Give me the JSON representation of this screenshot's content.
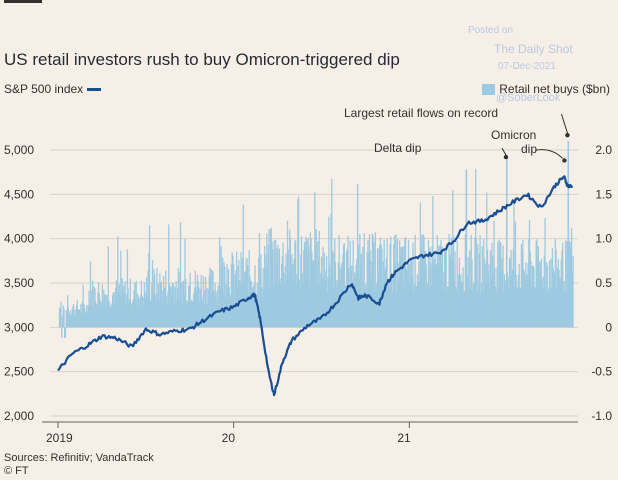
{
  "title": "US retail investors rush to buy Omicron-triggered dip",
  "legend": {
    "left": "S&P 500 index",
    "right": "Retail net buys ($bn)"
  },
  "watermark": {
    "posted_on": "Posted on",
    "site": "The Daily Shot",
    "date": "07-Dec-2021",
    "handle": "@SoberLook"
  },
  "footer": {
    "sources": "Sources: Refinitiv; VandaTrack",
    "credit": "© FT"
  },
  "colors": {
    "line": "#1a4e94",
    "bars": "#9ecae1",
    "grid": "#d9d2c9",
    "background": "#f5efe8"
  },
  "chart_data": {
    "type": "bar+line",
    "title": "US retail investors rush to buy Omicron-triggered dip",
    "x": {
      "start": "2019-01-01",
      "end": "2021-12-06",
      "tick_labels": [
        "2019",
        "20",
        "21"
      ]
    },
    "y_left": {
      "label": "S&P 500 index",
      "range": [
        2000,
        5000
      ],
      "ticks": [
        2000,
        2500,
        3000,
        3500,
        4000,
        4500,
        5000
      ],
      "tick_labels": [
        "2,000",
        "2,500",
        "3,000",
        "3,500",
        "4,000",
        "4,500",
        "5,000"
      ]
    },
    "y_right": {
      "label": "Retail net buys ($bn)",
      "range": [
        -1.0,
        2.0
      ],
      "ticks": [
        -1.0,
        -0.5,
        0,
        0.5,
        1.0,
        1.5,
        2.0
      ],
      "tick_labels": [
        "-1.0",
        "-0.5",
        "0",
        "0.5",
        "1.0",
        "1.5",
        "2.0"
      ]
    },
    "series": [
      {
        "name": "S&P 500 index",
        "axis": "left",
        "type": "line",
        "points": [
          [
            2019.0,
            2510
          ],
          [
            2019.08,
            2700
          ],
          [
            2019.17,
            2800
          ],
          [
            2019.25,
            2900
          ],
          [
            2019.33,
            2880
          ],
          [
            2019.42,
            2780
          ],
          [
            2019.5,
            2980
          ],
          [
            2019.58,
            2920
          ],
          [
            2019.67,
            2960
          ],
          [
            2019.75,
            2980
          ],
          [
            2019.83,
            3080
          ],
          [
            2019.92,
            3180
          ],
          [
            2020.0,
            3230
          ],
          [
            2020.08,
            3330
          ],
          [
            2020.12,
            3370
          ],
          [
            2020.15,
            3100
          ],
          [
            2020.2,
            2480
          ],
          [
            2020.23,
            2240
          ],
          [
            2020.28,
            2620
          ],
          [
            2020.33,
            2850
          ],
          [
            2020.42,
            3020
          ],
          [
            2020.5,
            3100
          ],
          [
            2020.58,
            3270
          ],
          [
            2020.67,
            3500
          ],
          [
            2020.71,
            3330
          ],
          [
            2020.75,
            3360
          ],
          [
            2020.83,
            3270
          ],
          [
            2020.87,
            3500
          ],
          [
            2020.92,
            3620
          ],
          [
            2021.0,
            3750
          ],
          [
            2021.08,
            3810
          ],
          [
            2021.17,
            3840
          ],
          [
            2021.25,
            3970
          ],
          [
            2021.33,
            4180
          ],
          [
            2021.42,
            4200
          ],
          [
            2021.5,
            4300
          ],
          [
            2021.58,
            4400
          ],
          [
            2021.67,
            4500
          ],
          [
            2021.75,
            4350
          ],
          [
            2021.83,
            4600
          ],
          [
            2021.88,
            4700
          ],
          [
            2021.9,
            4600
          ],
          [
            2021.93,
            4580
          ]
        ]
      },
      {
        "name": "Retail net buys ($bn)",
        "axis": "right",
        "type": "bar",
        "segments": [
          {
            "from": 2019.0,
            "to": 2019.17,
            "typical": 0.25,
            "peak": 0.5
          },
          {
            "from": 2019.17,
            "to": 2019.5,
            "typical": 0.45,
            "peak": 1.1
          },
          {
            "from": 2019.5,
            "to": 2019.92,
            "typical": 0.55,
            "peak": 1.3
          },
          {
            "from": 2019.92,
            "to": 2020.17,
            "typical": 0.7,
            "peak": 1.6
          },
          {
            "from": 2020.17,
            "to": 2020.5,
            "typical": 0.9,
            "peak": 1.75
          },
          {
            "from": 2020.5,
            "to": 2021.0,
            "typical": 0.85,
            "peak": 1.75
          },
          {
            "from": 2021.0,
            "to": 2021.5,
            "typical": 0.85,
            "peak": 1.8
          },
          {
            "from": 2021.5,
            "to": 2021.93,
            "typical": 0.8,
            "peak": 1.6
          }
        ],
        "notable": [
          {
            "x": 2021.32,
            "value": 1.78
          },
          {
            "x": 2021.55,
            "value": 1.92
          },
          {
            "x": 2021.9,
            "value": 2.1
          }
        ]
      }
    ],
    "annotations": [
      {
        "text": "Largest retail flows on record",
        "x": 2021.9,
        "value": 2.1
      },
      {
        "text": "Delta dip",
        "x": 2021.55,
        "value": 1.92
      },
      {
        "text": "Omicron dip",
        "x": 2021.86,
        "value": 1.95
      }
    ]
  }
}
